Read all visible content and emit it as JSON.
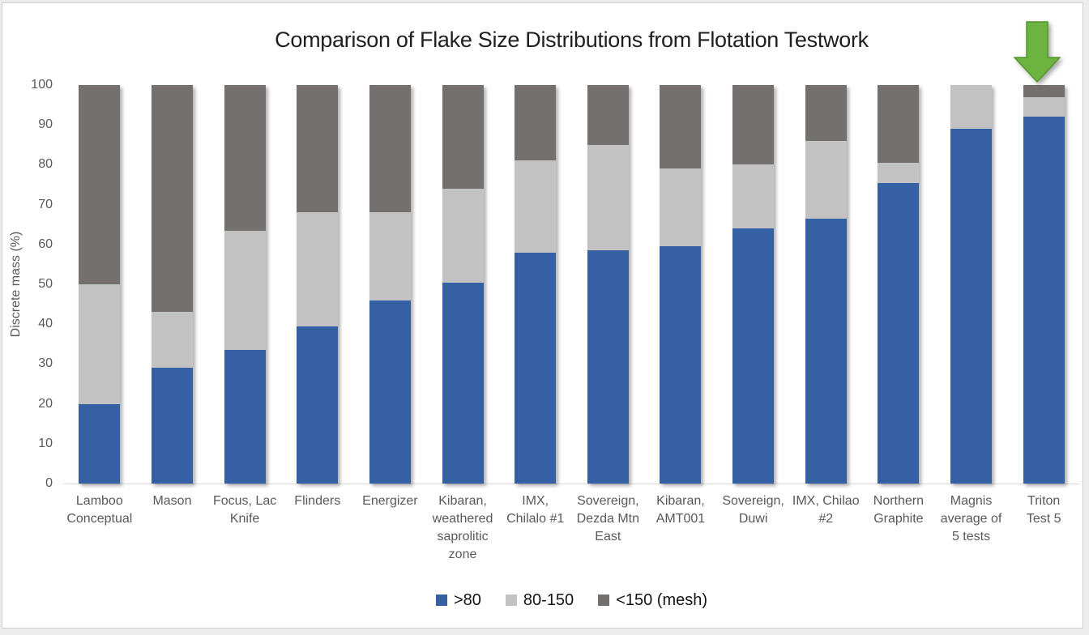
{
  "chart_data": {
    "type": "bar",
    "stacked": true,
    "title": "Comparison of Flake Size Distributions from Flotation Testwork",
    "xlabel": "",
    "ylabel": "Discrete mass (%)",
    "ylim": [
      0,
      100
    ],
    "yticks": [
      0,
      10,
      20,
      30,
      40,
      50,
      60,
      70,
      80,
      90,
      100
    ],
    "grid": false,
    "legend_position": "bottom",
    "categories": [
      "Lamboo Conceptual",
      "Mason",
      "Focus, Lac Knife",
      "Flinders",
      "Energizer",
      "Kibaran, weathered saprolitic zone",
      "IMX, Chilalo #1",
      "Sovereign, Dezda Mtn East",
      "Kibaran, AMT001",
      "Sovereign, Duwi",
      "IMX, Chilao #2",
      "Northern Graphite",
      "Magnis average of 5 tests",
      "Triton Test 5"
    ],
    "categories_display": [
      "Lamboo\nConceptual",
      "Mason",
      "Focus, Lac\nKnife",
      "Flinders",
      "Energizer",
      "Kibaran,\nweathered\nsaprolitic\nzone",
      "IMX,\nChilalo #1",
      "Sovereign,\nDezda Mtn\nEast",
      "Kibaran,\nAMT001",
      "Sovereign,\nDuwi",
      "IMX, Chilao\n#2",
      "Northern\nGraphite",
      "Magnis\naverage of\n5 tests",
      "Triton\nTest 5"
    ],
    "series": [
      {
        "name": ">80",
        "color": "#3560A3",
        "values": [
          20,
          29,
          33.5,
          39.5,
          46,
          50.5,
          58,
          58.5,
          59.5,
          64,
          66.5,
          75.5,
          89,
          92
        ]
      },
      {
        "name": "80-150",
        "color": "#C3C2C2",
        "values": [
          30,
          14,
          30,
          28.5,
          22,
          23.5,
          23,
          26.5,
          19.5,
          16,
          19.5,
          5,
          11,
          5
        ]
      },
      {
        "name": "<150 (mesh)",
        "color": "#747070",
        "values": [
          50,
          57,
          36.5,
          32,
          32,
          26,
          19,
          15,
          21,
          20,
          14,
          19.5,
          0,
          3
        ]
      }
    ],
    "annotation": {
      "type": "down-arrow",
      "target_category": "Triton Test 5",
      "color": "#6CB33F",
      "border_color": "#55962E"
    }
  }
}
